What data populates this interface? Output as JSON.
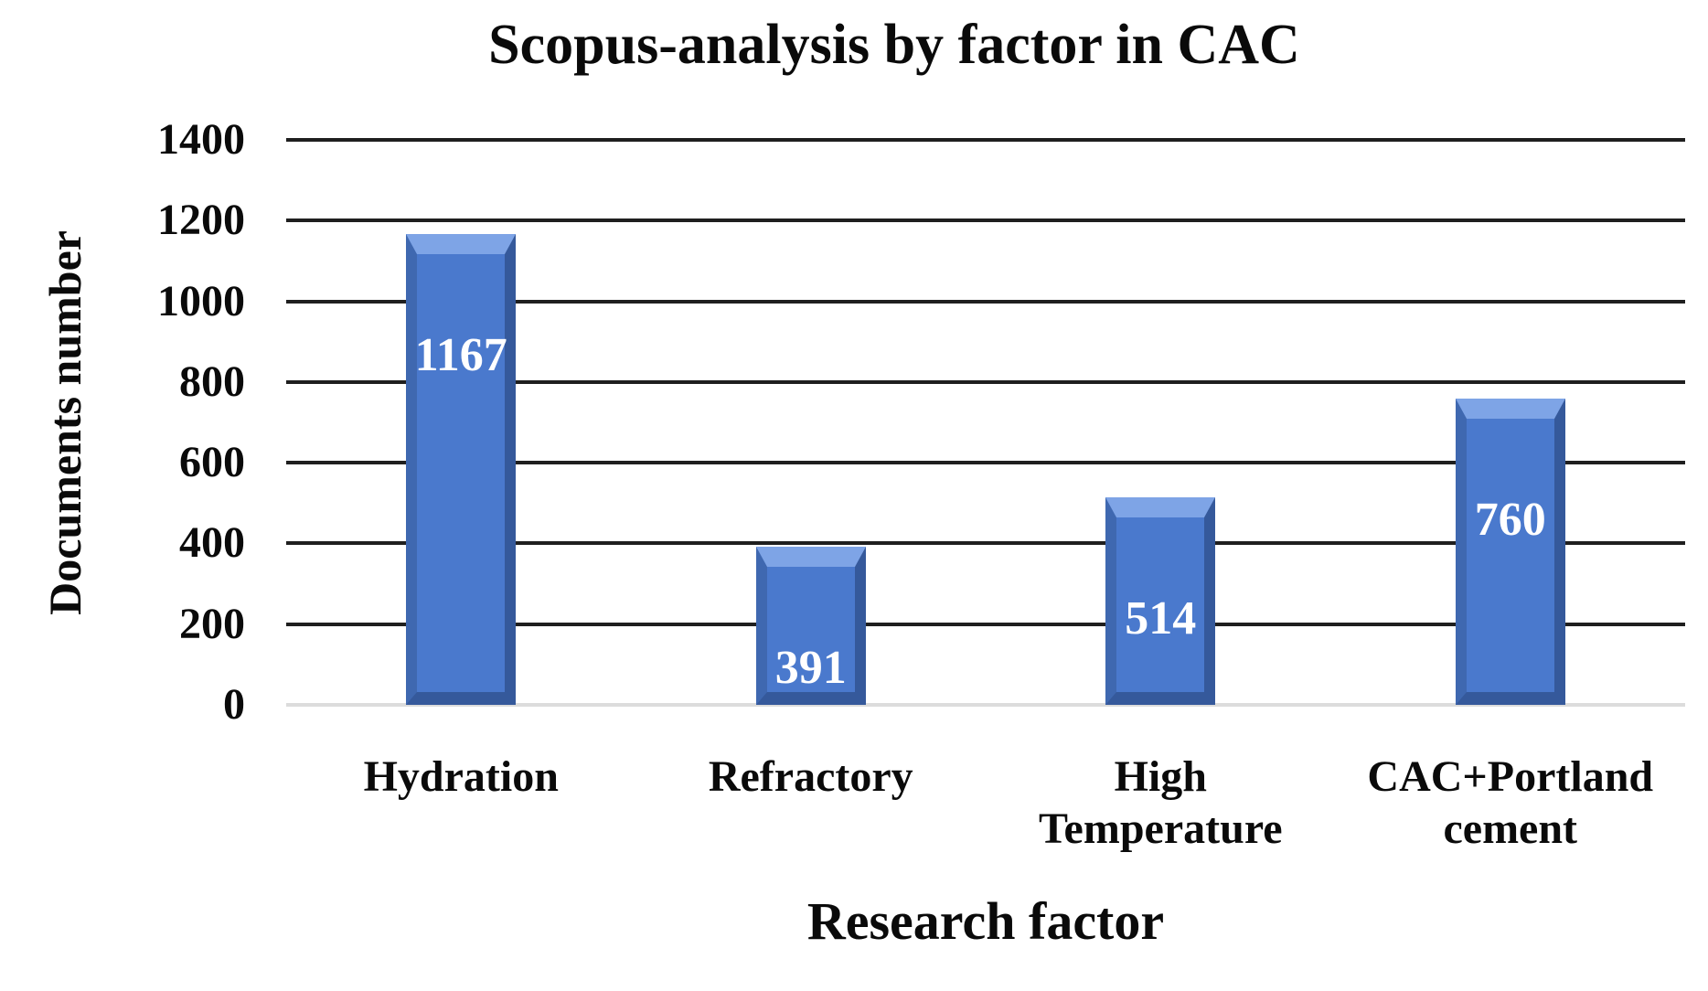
{
  "chart_data": {
    "type": "bar",
    "title": "Scopus-analysis by factor in CAC",
    "xlabel": "Research factor",
    "ylabel": "Documents number",
    "categories": [
      "Hydration",
      "Refractory",
      "High\nTemperature",
      "CAC+Portland\ncement"
    ],
    "values": [
      1167,
      391,
      514,
      760
    ],
    "data_labels": [
      "1167",
      "391",
      "514",
      "760"
    ],
    "ylim": [
      0,
      1400
    ],
    "yticks": [
      0,
      200,
      400,
      600,
      800,
      1000,
      1200,
      1400
    ],
    "grid": "horizontal",
    "legend": "none",
    "data_label_position": "inside-end",
    "colors": {
      "bar": "#4a79cd",
      "bar_bevel_light": "#7ea4e6",
      "bar_bevel_side": "#3f68b0",
      "bar_bevel_dark": "#35599b",
      "bar_label": "#ffffff",
      "gridline": "#1f1f1f",
      "zero_baseline": "#dcdcdc",
      "text": "#0a0a0a",
      "background": "#ffffff"
    }
  }
}
